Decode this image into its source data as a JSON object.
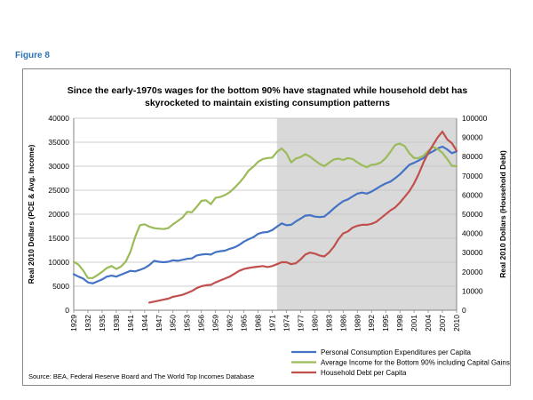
{
  "figure_label": "Figure 8",
  "source": "Source: BEA, Federal Reserve Board and The World Top Incomes Database",
  "colors": {
    "pce": "#4472c4",
    "income": "#9bbb59",
    "debt": "#c0504d",
    "shade": "#d9d9d9"
  },
  "chart_data": {
    "type": "line",
    "title": "Since the early-1970s wages for the bottom 90% have stagnated while household debt has skyrocketed to maintain existing consumption patterns",
    "title_lines": [
      "Since the early-1970s wages for the bottom 90% have stagnated while household debt has",
      "skyrocketed to maintain existing consumption patterns"
    ],
    "ylabel": "Real 2010 Dollars (PCE & Avg. Income)",
    "y2label": "Real 2010 Dollars (Household Debt)",
    "ylim": [
      0,
      40000
    ],
    "y2lim": [
      0,
      100000
    ],
    "yticks": [
      "0",
      "5000",
      "10000",
      "15000",
      "20000",
      "25000",
      "30000",
      "35000",
      "40000"
    ],
    "y2ticks": [
      "0",
      "10000",
      "20000",
      "30000",
      "40000",
      "50000",
      "60000",
      "70000",
      "80000",
      "90000",
      "100000"
    ],
    "xlim": [
      1929,
      2010
    ],
    "xticks": [
      "1929",
      "1932",
      "1935",
      "1938",
      "1941",
      "1944",
      "1947",
      "1950",
      "1953",
      "1956",
      "1959",
      "1962",
      "1965",
      "1968",
      "1971",
      "1974",
      "1977",
      "1980",
      "1983",
      "1986",
      "1989",
      "1992",
      "1995",
      "1998",
      "2001",
      "2004",
      "2007",
      "2010"
    ],
    "shaded_region": {
      "from": 1972,
      "to": 2010
    },
    "grid": "horizontal",
    "legend": {
      "position": "bottom-right"
    },
    "series": [
      {
        "name": "Personal Consumption Expenditures per Capita",
        "axis": "left",
        "color_key": "pce",
        "x": [
          1929,
          1930,
          1931,
          1932,
          1933,
          1934,
          1935,
          1936,
          1937,
          1938,
          1939,
          1940,
          1941,
          1942,
          1943,
          1944,
          1945,
          1946,
          1947,
          1948,
          1949,
          1950,
          1951,
          1952,
          1953,
          1954,
          1955,
          1956,
          1957,
          1958,
          1959,
          1960,
          1961,
          1962,
          1963,
          1964,
          1965,
          1966,
          1967,
          1968,
          1969,
          1970,
          1971,
          1972,
          1973,
          1974,
          1975,
          1976,
          1977,
          1978,
          1979,
          1980,
          1981,
          1982,
          1983,
          1984,
          1985,
          1986,
          1987,
          1988,
          1989,
          1990,
          1991,
          1992,
          1993,
          1994,
          1995,
          1996,
          1997,
          1998,
          1999,
          2000,
          2001,
          2002,
          2003,
          2004,
          2005,
          2006,
          2007,
          2008,
          2009,
          2010
        ],
        "y": [
          7500,
          7000,
          6600,
          5800,
          5600,
          6000,
          6400,
          7000,
          7200,
          7000,
          7400,
          7800,
          8200,
          8100,
          8400,
          8800,
          9400,
          10300,
          10100,
          10000,
          10100,
          10400,
          10300,
          10500,
          10700,
          10800,
          11400,
          11600,
          11700,
          11600,
          12100,
          12300,
          12400,
          12800,
          13100,
          13600,
          14300,
          14800,
          15200,
          15900,
          16200,
          16300,
          16700,
          17400,
          18100,
          17700,
          17800,
          18500,
          19100,
          19700,
          19800,
          19500,
          19400,
          19500,
          20300,
          21200,
          22000,
          22700,
          23100,
          23700,
          24300,
          24500,
          24300,
          24700,
          25300,
          25900,
          26400,
          26800,
          27500,
          28300,
          29300,
          30300,
          30700,
          31200,
          31700,
          32600,
          33100,
          33700,
          34100,
          33500,
          32700,
          33100
        ]
      },
      {
        "name": "Average Income for the Bottom 90% including Capital Gains",
        "axis": "left",
        "color_key": "income",
        "x": [
          1929,
          1930,
          1931,
          1932,
          1933,
          1934,
          1935,
          1936,
          1937,
          1938,
          1939,
          1940,
          1941,
          1942,
          1943,
          1944,
          1945,
          1946,
          1947,
          1948,
          1949,
          1950,
          1951,
          1952,
          1953,
          1954,
          1955,
          1956,
          1957,
          1958,
          1959,
          1960,
          1961,
          1962,
          1963,
          1964,
          1965,
          1966,
          1967,
          1968,
          1969,
          1970,
          1971,
          1972,
          1973,
          1974,
          1975,
          1976,
          1977,
          1978,
          1979,
          1980,
          1981,
          1982,
          1983,
          1984,
          1985,
          1986,
          1987,
          1988,
          1989,
          1990,
          1991,
          1992,
          1993,
          1994,
          1995,
          1996,
          1997,
          1998,
          1999,
          2000,
          2001,
          2002,
          2003,
          2004,
          2005,
          2006,
          2007,
          2008,
          2009,
          2010
        ],
        "y": [
          10100,
          9500,
          8300,
          6700,
          6700,
          7300,
          8000,
          8800,
          9200,
          8600,
          9100,
          10100,
          12200,
          15300,
          17700,
          17900,
          17400,
          17100,
          17000,
          16900,
          17100,
          17900,
          18600,
          19300,
          20500,
          20400,
          21500,
          22800,
          22900,
          22100,
          23400,
          23600,
          24000,
          24600,
          25500,
          26500,
          27700,
          29100,
          29900,
          30900,
          31500,
          31700,
          31800,
          33000,
          33700,
          32700,
          30800,
          31600,
          31900,
          32500,
          32000,
          31200,
          30500,
          30000,
          30700,
          31400,
          31600,
          31300,
          31700,
          31500,
          30800,
          30200,
          29800,
          30300,
          30400,
          30800,
          31700,
          33000,
          34400,
          34700,
          34200,
          32700,
          31700,
          31700,
          32200,
          33200,
          34000,
          33600,
          32800,
          31500,
          30100,
          30000
        ]
      },
      {
        "name": "Household Debt per Capita",
        "axis": "right",
        "color_key": "debt",
        "x": [
          1945,
          1946,
          1947,
          1948,
          1949,
          1950,
          1951,
          1952,
          1953,
          1954,
          1955,
          1956,
          1957,
          1958,
          1959,
          1960,
          1961,
          1962,
          1963,
          1964,
          1965,
          1966,
          1967,
          1968,
          1969,
          1970,
          1971,
          1972,
          1973,
          1974,
          1975,
          1976,
          1977,
          1978,
          1979,
          1980,
          1981,
          1982,
          1983,
          1984,
          1985,
          1986,
          1987,
          1988,
          1989,
          1990,
          1991,
          1992,
          1993,
          1994,
          1995,
          1996,
          1997,
          1998,
          1999,
          2000,
          2001,
          2002,
          2003,
          2004,
          2005,
          2006,
          2007,
          2008,
          2009,
          2010
        ],
        "y": [
          4000,
          4500,
          5000,
          5500,
          6000,
          7000,
          7500,
          8000,
          9000,
          10000,
          11500,
          12500,
          13000,
          13200,
          14500,
          15500,
          16500,
          17500,
          19000,
          20500,
          21500,
          22000,
          22400,
          22700,
          23000,
          22500,
          23000,
          24000,
          25000,
          25000,
          24000,
          24500,
          26500,
          29000,
          30000,
          29500,
          28500,
          28000,
          30000,
          33000,
          37000,
          40000,
          41000,
          43000,
          44000,
          44500,
          44500,
          45000,
          46000,
          48000,
          50000,
          52000,
          53500,
          56000,
          59000,
          62000,
          66000,
          71000,
          77000,
          82000,
          86000,
          90000,
          93000,
          89000,
          87000,
          83000
        ]
      }
    ]
  }
}
